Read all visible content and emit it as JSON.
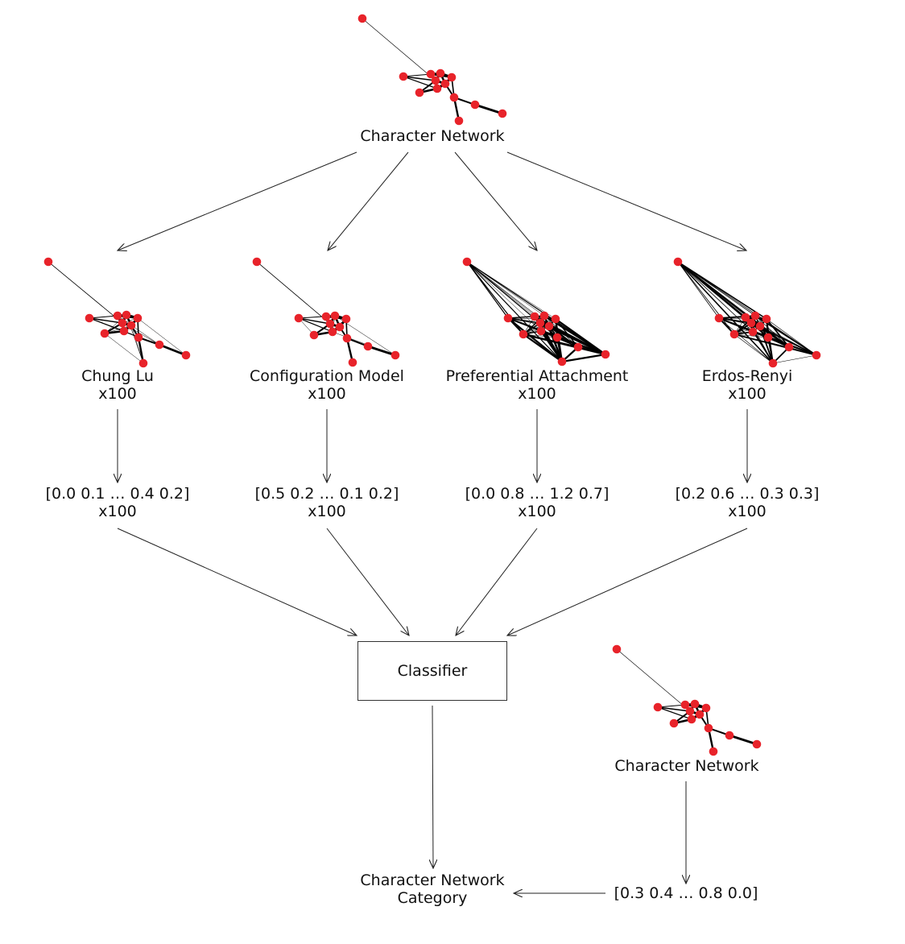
{
  "top": {
    "label": "Character Network"
  },
  "models": [
    {
      "name": "Chung Lu",
      "count": "x100",
      "vector": "[0.0 0.1 … 0.4 0.2]",
      "vector_count": "x100"
    },
    {
      "name": "Configuration Model",
      "count": "x100",
      "vector": "[0.5 0.2 … 0.1 0.2]",
      "vector_count": "x100"
    },
    {
      "name": "Preferential Attachment",
      "count": "x100",
      "vector": "[0.0 0.8 … 1.2 0.7]",
      "vector_count": "x100"
    },
    {
      "name": "Erdos-Renyi",
      "count": "x100",
      "vector": "[0.2 0.6 … 0.3 0.3]",
      "vector_count": "x100"
    }
  ],
  "classifier": {
    "label": "Classifier"
  },
  "query": {
    "label": "Character Network",
    "vector": "[0.3 0.4 … 0.8 0.0]"
  },
  "output": {
    "line1": "Character Network",
    "line2": "Category"
  },
  "colors": {
    "node": "#e8232a",
    "edge": "#000000",
    "arrow": "#222222"
  }
}
